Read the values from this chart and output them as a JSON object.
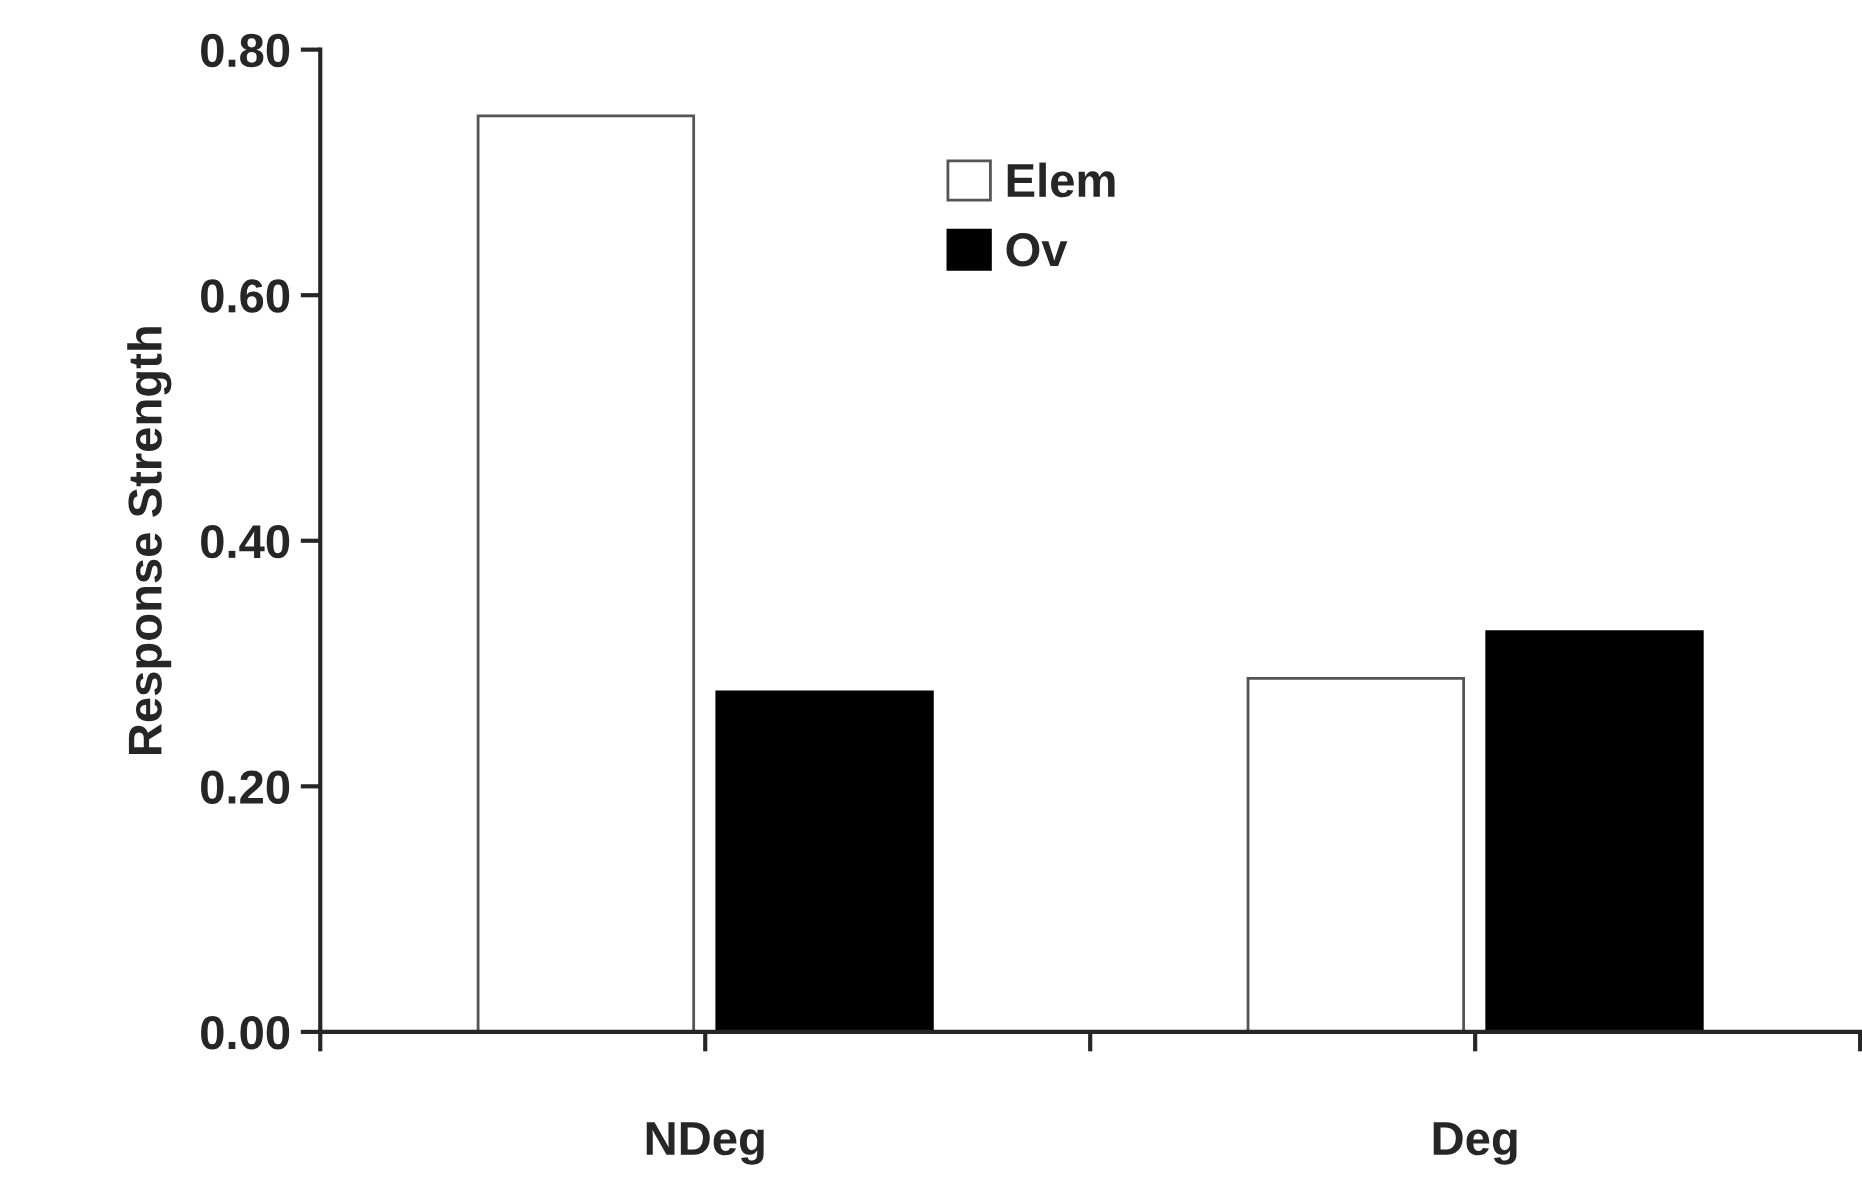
{
  "chart_data": {
    "type": "bar",
    "ylabel": "Response Strength",
    "categories": [
      "NDeg",
      "Deg"
    ],
    "series": [
      {
        "name": "Elem",
        "color": "#ffffff",
        "values": [
          0.746,
          0.288
        ]
      },
      {
        "name": "Ov",
        "color": "#000000",
        "values": [
          0.277,
          0.326
        ]
      }
    ],
    "ylim": [
      0,
      0.8
    ],
    "yticks": [
      {
        "value": 0,
        "label": "0.00"
      },
      {
        "value": 0.2,
        "label": "0.20"
      },
      {
        "value": 0.4,
        "label": "0.40"
      },
      {
        "value": 0.6,
        "label": "0.60"
      },
      {
        "value": 0.8,
        "label": "0.80"
      }
    ],
    "grid": false,
    "legend": "top right"
  }
}
